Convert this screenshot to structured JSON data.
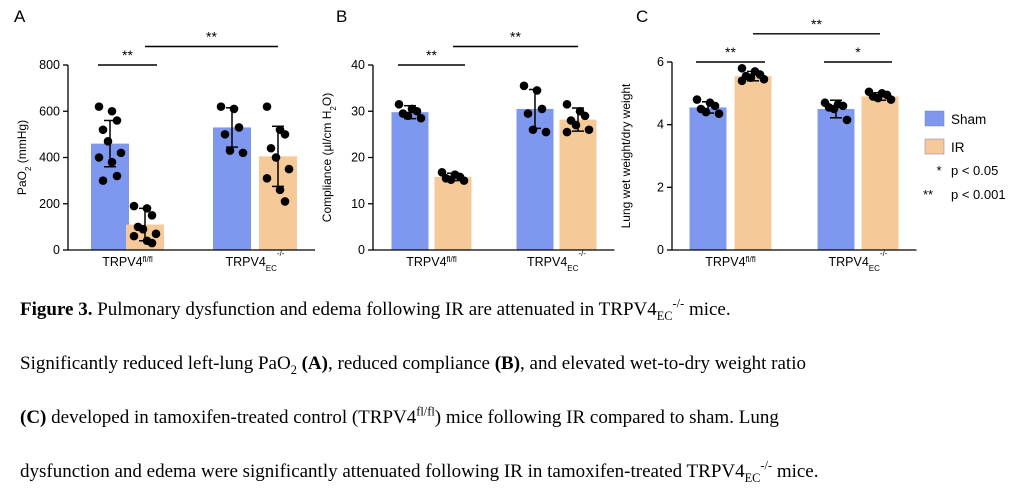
{
  "colors": {
    "sham": "#7f98ef",
    "ir": "#f6c998",
    "dot": "#000000",
    "axis": "#000000"
  },
  "legend": {
    "items": [
      {
        "key": "sham",
        "label": "Sham"
      },
      {
        "key": "ir",
        "label": "IR"
      }
    ],
    "sig": [
      {
        "mark": "*",
        "label": "p < 0.05"
      },
      {
        "mark": "**",
        "label": "p < 0.001"
      }
    ]
  },
  "chart_data": [
    {
      "panel": "A",
      "type": "bar",
      "ylabel_parts": [
        "PaO",
        "2",
        " (mmHg)"
      ],
      "ylim": [
        0,
        800
      ],
      "ticks": [
        0,
        200,
        400,
        600,
        800
      ],
      "groups": [
        {
          "label": "TRPV4",
          "sup": "fl/fl",
          "sub": "",
          "bars": [
            {
              "series": "Sham",
              "mean": 460,
              "sd": 100,
              "points": [
                620,
                600,
                560,
                520,
                470,
                420,
                400,
                380,
                320,
                300
              ]
            },
            {
              "series": "IR",
              "mean": 110,
              "sd": 70,
              "points": [
                190,
                180,
                150,
                100,
                90,
                70,
                60,
                40,
                30
              ]
            }
          ]
        },
        {
          "label": "TRPV4",
          "sup": "-/-",
          "sub": "EC",
          "bars": [
            {
              "series": "Sham",
              "mean": 530,
              "sd": 85,
              "points": [
                620,
                610,
                530,
                500,
                430,
                420
              ]
            },
            {
              "series": "IR",
              "mean": 405,
              "sd": 130,
              "points": [
                620,
                520,
                500,
                440,
                400,
                350,
                310,
                260,
                210
              ]
            }
          ]
        }
      ],
      "significance": [
        {
          "label": "**",
          "from": [
            0,
            0
          ],
          "to": [
            0,
            1
          ],
          "y": 800
        },
        {
          "label": "**",
          "from": [
            0,
            1
          ],
          "to": [
            1,
            1
          ],
          "y": 880
        }
      ]
    },
    {
      "panel": "B",
      "type": "bar",
      "ylabel_parts": [
        "Compliance (µl/cm H",
        "2",
        "O)"
      ],
      "ylim": [
        0,
        40
      ],
      "ticks": [
        0,
        10,
        20,
        30,
        40
      ],
      "groups": [
        {
          "label": "TRPV4",
          "sup": "fl/fl",
          "sub": "",
          "bars": [
            {
              "series": "Sham",
              "mean": 29.8,
              "sd": 1.4,
              "points": [
                31.5,
                30.5,
                30,
                29.5,
                29,
                28.5
              ]
            },
            {
              "series": "IR",
              "mean": 15.8,
              "sd": 0.8,
              "points": [
                16.8,
                16.3,
                15.8,
                15.5,
                15.2,
                15
              ]
            }
          ]
        },
        {
          "label": "TRPV4",
          "sup": "-/-",
          "sub": "EC",
          "bars": [
            {
              "series": "Sham",
              "mean": 30.5,
              "sd": 4.2,
              "points": [
                35.5,
                34.5,
                30.5,
                29.5,
                26,
                25.5
              ]
            },
            {
              "series": "IR",
              "mean": 28.2,
              "sd": 2.5,
              "points": [
                31.5,
                30,
                29,
                28,
                27,
                26,
                25.5
              ]
            }
          ]
        }
      ],
      "significance": [
        {
          "label": "**",
          "from": [
            0,
            0
          ],
          "to": [
            0,
            1
          ],
          "y": 40
        },
        {
          "label": "**",
          "from": [
            0,
            1
          ],
          "to": [
            1,
            1
          ],
          "y": 44
        }
      ]
    },
    {
      "panel": "C",
      "type": "bar",
      "ylabel_parts": [
        "Lung wet weight/dry weight",
        "",
        ""
      ],
      "ylim": [
        0,
        6
      ],
      "ticks": [
        0,
        2,
        4,
        6
      ],
      "groups": [
        {
          "label": "TRPV4",
          "sup": "fl/fl",
          "sub": "",
          "bars": [
            {
              "series": "Sham",
              "mean": 4.55,
              "sd": 0.18,
              "points": [
                4.8,
                4.7,
                4.6,
                4.5,
                4.4,
                4.35
              ]
            },
            {
              "series": "IR",
              "mean": 5.55,
              "sd": 0.15,
              "points": [
                5.8,
                5.7,
                5.6,
                5.55,
                5.5,
                5.45,
                5.4
              ]
            }
          ]
        },
        {
          "label": "TRPV4",
          "sup": "-/-",
          "sub": "EC",
          "bars": [
            {
              "series": "Sham",
              "mean": 4.5,
              "sd": 0.28,
              "points": [
                4.7,
                4.65,
                4.6,
                4.55,
                4.5,
                4.15
              ]
            },
            {
              "series": "IR",
              "mean": 4.9,
              "sd": 0.12,
              "points": [
                5.05,
                5.0,
                4.95,
                4.9,
                4.85,
                4.8
              ]
            }
          ]
        }
      ],
      "significance": [
        {
          "label": "**",
          "from": [
            0,
            0
          ],
          "to": [
            0,
            1
          ],
          "y": 6.0
        },
        {
          "label": "*",
          "from": [
            1,
            0
          ],
          "to": [
            1,
            1
          ],
          "y": 6.0
        },
        {
          "label": "**",
          "from": [
            0,
            1
          ],
          "to": [
            1,
            1
          ],
          "y": 6.9
        }
      ]
    }
  ],
  "caption": {
    "title_bold": "Figure 3.",
    "l1_a": " Pulmonary dysfunction and edema following IR are attenuated in TRPV4",
    "l1_sub": "EC",
    "l1_sup": "-/-",
    "l1_b": " mice.",
    "l2_a": "Significantly reduced left-lung PaO",
    "l2_sub": "2",
    "l2_b": " ",
    "l2_A": "(A)",
    "l2_c": ", reduced compliance ",
    "l2_B": "(B)",
    "l2_d": ", and elevated wet-to-dry weight ratio",
    "l3_C": "(C)",
    "l3_a": " developed in tamoxifen-treated control (TRPV4",
    "l3_sup": "fl/fl",
    "l3_b": ") mice following IR compared to sham. Lung",
    "l4_a": "dysfunction and edema were significantly attenuated following IR in tamoxifen-treated TRPV4",
    "l4_sub": "EC",
    "l4_sup": "-/-",
    "l4_b": " mice."
  }
}
